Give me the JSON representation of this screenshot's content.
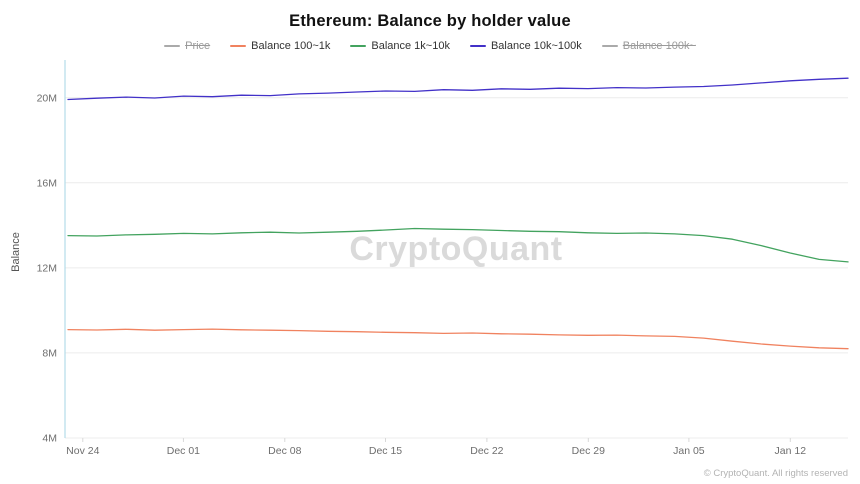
{
  "chart_data": {
    "type": "line",
    "title": "Ethereum: Balance by holder value",
    "ylabel": "Balance",
    "watermark": "CryptoQuant",
    "footer": "© CryptoQuant. All rights reserved",
    "unit": "M",
    "ylim": [
      4,
      21.4
    ],
    "grid": "horizontal",
    "legend_position": "top-center",
    "y_ticks": [
      {
        "value": 4,
        "label": "4M"
      },
      {
        "value": 8,
        "label": "8M"
      },
      {
        "value": 12,
        "label": "12M"
      },
      {
        "value": 16,
        "label": "16M"
      },
      {
        "value": 20,
        "label": "20M"
      }
    ],
    "x_ticks": [
      {
        "pos": 0.019,
        "label": "Nov 24"
      },
      {
        "pos": 0.148,
        "label": "Dec 01"
      },
      {
        "pos": 0.278,
        "label": "Dec 08"
      },
      {
        "pos": 0.407,
        "label": "Dec 15"
      },
      {
        "pos": 0.537,
        "label": "Dec 22"
      },
      {
        "pos": 0.667,
        "label": "Dec 29"
      },
      {
        "pos": 0.796,
        "label": "Jan 05"
      },
      {
        "pos": 0.926,
        "label": "Jan 12"
      }
    ],
    "x": [
      "Nov 23",
      "Nov 25",
      "Nov 27",
      "Nov 29",
      "Dec 01",
      "Dec 03",
      "Dec 05",
      "Dec 07",
      "Dec 09",
      "Dec 11",
      "Dec 13",
      "Dec 15",
      "Dec 17",
      "Dec 19",
      "Dec 21",
      "Dec 23",
      "Dec 25",
      "Dec 27",
      "Dec 29",
      "Dec 31",
      "Jan 02",
      "Jan 04",
      "Jan 06",
      "Jan 08",
      "Jan 10",
      "Jan 12",
      "Jan 14",
      "Jan 16"
    ],
    "series": [
      {
        "name": "Price",
        "color": "#999999",
        "hidden": true,
        "values": []
      },
      {
        "name": "Balance 100~1k",
        "color": "#f0825f",
        "hidden": false,
        "values": [
          9.1,
          9.08,
          9.11,
          9.07,
          9.1,
          9.12,
          9.09,
          9.07,
          9.05,
          9.02,
          9.0,
          8.97,
          8.95,
          8.92,
          8.94,
          8.9,
          8.88,
          8.85,
          8.83,
          8.84,
          8.8,
          8.78,
          8.7,
          8.55,
          8.42,
          8.32,
          8.24,
          8.2
        ]
      },
      {
        "name": "Balance 1k~10k",
        "color": "#43a35f",
        "hidden": false,
        "values": [
          13.52,
          13.5,
          13.55,
          13.58,
          13.62,
          13.6,
          13.65,
          13.68,
          13.64,
          13.68,
          13.72,
          13.78,
          13.85,
          13.82,
          13.8,
          13.76,
          13.72,
          13.7,
          13.65,
          13.62,
          13.64,
          13.6,
          13.52,
          13.35,
          13.05,
          12.7,
          12.4,
          12.28
        ]
      },
      {
        "name": "Balance 10k~100k",
        "color": "#4231c8",
        "hidden": false,
        "values": [
          19.92,
          19.98,
          20.03,
          19.99,
          20.08,
          20.05,
          20.12,
          20.1,
          20.18,
          20.22,
          20.27,
          20.32,
          20.3,
          20.38,
          20.35,
          20.42,
          20.4,
          20.45,
          20.43,
          20.48,
          20.46,
          20.5,
          20.53,
          20.6,
          20.7,
          20.8,
          20.87,
          20.92
        ]
      },
      {
        "name": "Balance 100k~",
        "color": "#999999",
        "hidden": true,
        "values": []
      }
    ]
  }
}
